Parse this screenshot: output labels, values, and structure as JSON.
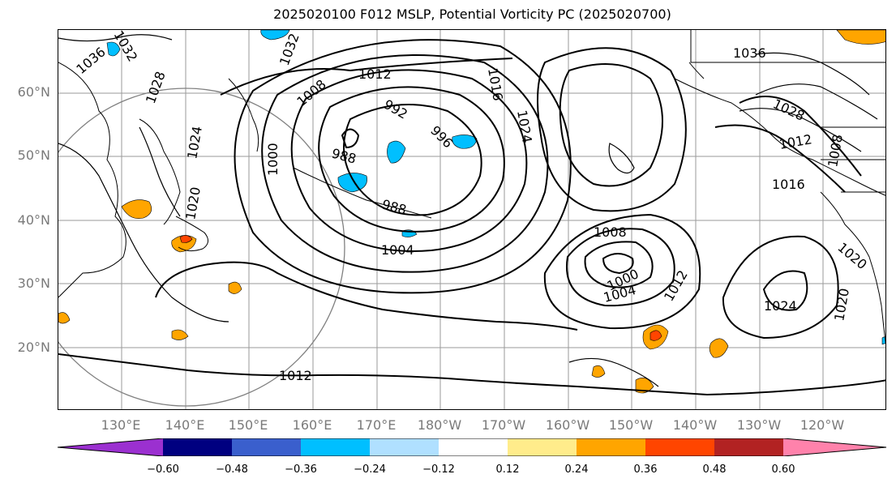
{
  "title": "2025020100 F012 MSLP, Potential Vorticity PC (2025020700)",
  "axes": {
    "lat_labels": [
      "60°N",
      "50°N",
      "40°N",
      "30°N",
      "20°N"
    ],
    "lon_labels": [
      "130°E",
      "140°E",
      "150°E",
      "160°E",
      "170°E",
      "180°W",
      "170°W",
      "160°W",
      "150°W",
      "140°W",
      "130°W",
      "120°W"
    ]
  },
  "isobar_labels": {
    "l1012_top": "1012",
    "l1008_left": "1008",
    "l992": "992",
    "l996": "996",
    "l988_a": "988",
    "l988_b": "988",
    "l1000": "1000",
    "l1004": "1004",
    "l1012_bottom": "1012",
    "l1016": "1016",
    "l1024_mid": "1024",
    "l1008_c": "1008",
    "l1000_c": "1000",
    "l1004_c": "1004",
    "l1012_c": "1012",
    "l1024_e": "1024",
    "l1020_e": "1020",
    "l1036_nw": "1036",
    "l1032_nw": "1032",
    "l1028_jp": "1028",
    "l1024_jp": "1024",
    "l1020_jp": "1020",
    "l1036_ne": "1036",
    "l1032_ne": "1032",
    "l1028_ne": "1028",
    "l1012_ne": "1012",
    "l1016_ne": "1016",
    "l1008_ne": "1008",
    "l1020_coast": "1020"
  },
  "colorbar": {
    "ticks": [
      "−0.60",
      "−0.48",
      "−0.36",
      "−0.24",
      "−0.12",
      "0.12",
      "0.24",
      "0.36",
      "0.48",
      "0.60"
    ],
    "colors": [
      "#9b30d0",
      "#000080",
      "#3a5fcd",
      "#00bfff",
      "#b0e0ff",
      "#ffffff",
      "#ffec8b",
      "#ffa500",
      "#ff4500",
      "#b22222",
      "#ff82ab"
    ]
  }
}
